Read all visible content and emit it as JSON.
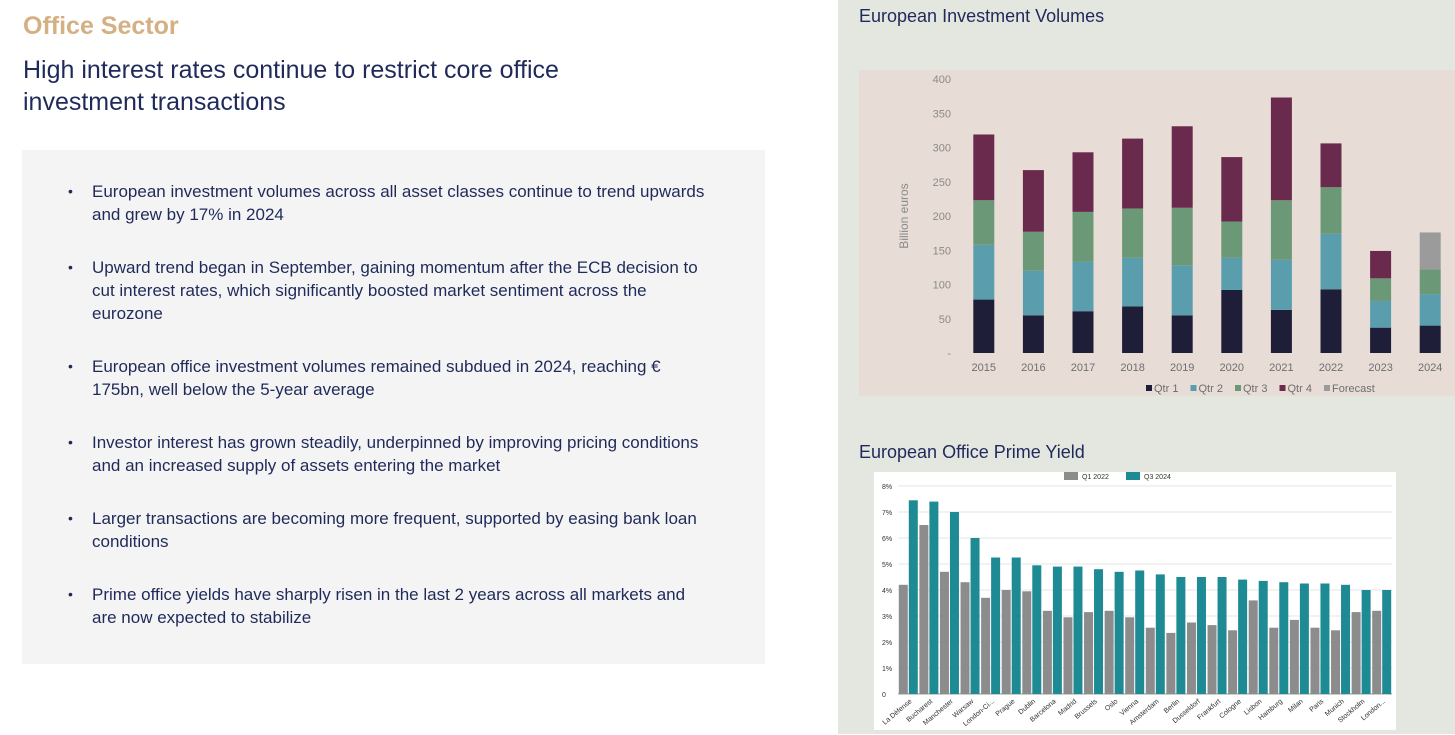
{
  "left": {
    "section_title": "Office Sector",
    "headline": "High interest rates continue to restrict core office investment transactions",
    "bullets": [
      "European investment volumes across all asset classes continue to trend upwards and grew by 17% in 2024",
      "Upward trend began in September, gaining momentum after the ECB decision to cut interest rates, which significantly boosted market sentiment across the eurozone",
      "European office investment volumes remained subdued in 2024, reaching    € 175bn, well below the 5-year average",
      "Investor interest has grown steadily, underpinned by improving pricing conditions and an increased supply of assets entering the market",
      "Larger transactions are becoming more frequent, supported by easing bank loan conditions",
      "Prime office yields have sharply risen in the last 2 years across all markets and are now expected to stabilize"
    ]
  },
  "chart_data": [
    {
      "type": "bar",
      "stacked": true,
      "title": "European Investment Volumes",
      "ylabel": "Billion euros",
      "xlabel": "",
      "ylim": [
        0,
        400
      ],
      "yticks": [
        "-",
        "50",
        "100",
        "150",
        "200",
        "250",
        "300",
        "350",
        "400"
      ],
      "categories": [
        "2015",
        "2016",
        "2017",
        "2018",
        "2019",
        "2020",
        "2021",
        "2022",
        "2023",
        "2024"
      ],
      "series": [
        {
          "name": "Qtr 1",
          "color": "#1e1e38",
          "values": [
            78,
            55,
            61,
            68,
            55,
            92,
            63,
            93,
            37,
            40
          ]
        },
        {
          "name": "Qtr 2",
          "color": "#5a9eae",
          "values": [
            80,
            65,
            72,
            71,
            73,
            47,
            73,
            81,
            39,
            46
          ]
        },
        {
          "name": "Qtr 3",
          "color": "#6b9977",
          "values": [
            65,
            57,
            73,
            72,
            84,
            53,
            87,
            68,
            33,
            36
          ]
        },
        {
          "name": "Qtr 4",
          "color": "#6a2a4d",
          "values": [
            96,
            90,
            87,
            102,
            119,
            94,
            150,
            64,
            40,
            0
          ]
        },
        {
          "name": "Forecast",
          "color": "#9b9b9b",
          "values": [
            0,
            0,
            0,
            0,
            0,
            0,
            0,
            0,
            0,
            54
          ]
        }
      ],
      "legend_position": "bottom",
      "grid": false
    },
    {
      "type": "bar",
      "title": "European Office Prime Yield",
      "xlabel": "",
      "ylabel": "",
      "ylim": [
        0,
        8
      ],
      "yticks": [
        "0",
        "1%",
        "2%",
        "3%",
        "4%",
        "5%",
        "6%",
        "7%",
        "8%"
      ],
      "categories": [
        "La Défense",
        "Bucharest",
        "Manchester",
        "Warsaw",
        "London-Ci...",
        "Prague",
        "Dublin",
        "Barcelona",
        "Madrid",
        "Brussels",
        "Oslo",
        "Vienna",
        "Amsterdam",
        "Berlin",
        "Dusseldorf",
        "Frankfurt",
        "Cologne",
        "Lisbon",
        "Hamburg",
        "Milan",
        "Paris",
        "Munich",
        "Stockholm",
        "London..."
      ],
      "series": [
        {
          "name": "Q1 2022",
          "color": "#8c8c8c",
          "values": [
            4.2,
            6.5,
            4.7,
            4.3,
            3.7,
            4.0,
            3.95,
            3.2,
            2.95,
            3.15,
            3.2,
            2.95,
            2.55,
            2.35,
            2.75,
            2.65,
            2.45,
            3.6,
            2.55,
            2.85,
            2.55,
            2.45,
            3.15,
            3.2
          ]
        },
        {
          "name": "Q3 2024",
          "color": "#1d8a94",
          "values": [
            7.45,
            7.4,
            7.0,
            6.0,
            5.25,
            5.25,
            4.95,
            4.9,
            4.9,
            4.8,
            4.7,
            4.75,
            4.6,
            4.5,
            4.5,
            4.5,
            4.4,
            4.35,
            4.3,
            4.25,
            4.25,
            4.2,
            4.0,
            4.0
          ]
        }
      ],
      "legend_position": "top",
      "grid": true
    }
  ]
}
